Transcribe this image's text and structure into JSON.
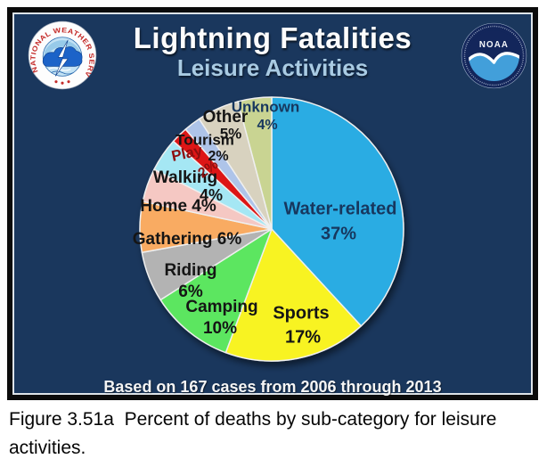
{
  "header": {
    "title": "Lightning Fatalities",
    "subtitle": "Leisure Activities"
  },
  "logos": {
    "nws_ring_text": "NATIONAL WEATHER SERVICE",
    "noaa_text": "NOAA"
  },
  "chart_data": {
    "type": "pie",
    "title": "Lightning Fatalities",
    "subtitle": "Leisure Activities",
    "unit": "%",
    "direction": "clockwise",
    "start_angle": "12 o'clock",
    "note": "Based on 167 cases from 2006 through 2013",
    "slices": [
      {
        "label": "Water-related",
        "value": 37,
        "color": "#29ACE3",
        "label_color": "#17375E"
      },
      {
        "label": "Sports",
        "value": 17,
        "color": "#F8F322",
        "label_color": "#151515"
      },
      {
        "label": "Camping",
        "value": 10,
        "color": "#5CE660",
        "label_color": "#151515"
      },
      {
        "label": "Riding",
        "value": 6,
        "color": "#B3B3B3",
        "label_color": "#151515"
      },
      {
        "label": "Gathering",
        "value": 6,
        "color": "#F9AB62",
        "label_color": "#151515"
      },
      {
        "label": "Home",
        "value": 4,
        "color": "#F5C8C3",
        "label_color": "#151515"
      },
      {
        "label": "Walking",
        "value": 4,
        "color": "#A5E7F4",
        "label_color": "#151515"
      },
      {
        "label": "Play",
        "value": 2,
        "color": "#DD1712",
        "label_color": "#8E0E0E"
      },
      {
        "label": "Tourism",
        "value": 2,
        "color": "#AEC4E9",
        "label_color": "#151515"
      },
      {
        "label": "Other",
        "value": 5,
        "color": "#D8D2BF",
        "label_color": "#151515"
      },
      {
        "label": "Unknown",
        "value": 4,
        "color": "#C9D492",
        "label_color": "#17375E"
      }
    ]
  },
  "caption": "Figure 3.51a  Percent of deaths by sub-category for leisure activities.",
  "colors": {
    "panel_background": "#1A375D",
    "title": "#FCFCFC",
    "subtitle": "#A9CBE3",
    "panel_border": "#0B0B0B"
  }
}
